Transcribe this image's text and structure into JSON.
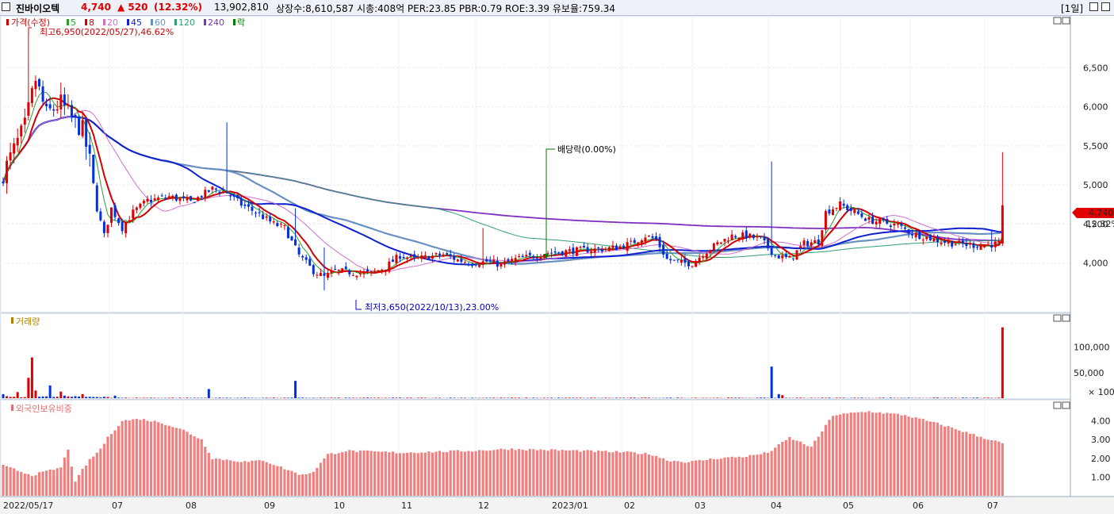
{
  "header": {
    "checkbox_icon": "checkbox-icon",
    "name": "진바이오텍",
    "price": "4,740",
    "change": "▲ 520",
    "change_pct": "(12.32%)",
    "volume": "13,902,810",
    "info": "상장수:8,610,587  시총:408억  PER:23.85  PBR:0.79  ROE:3.39  유보율:759.34",
    "period": "[1일]",
    "colors": {
      "up": "#e00000",
      "down": "#0000ff"
    }
  },
  "price_panel": {
    "legend_title": "가격(수정)",
    "ma_legend": [
      {
        "label": "5",
        "color": "#2aa02a"
      },
      {
        "label": "8",
        "color": "#d40000"
      },
      {
        "label": "20",
        "color": "#d070d0"
      },
      {
        "label": "45",
        "color": "#1020d0"
      },
      {
        "label": "60",
        "color": "#6890c0"
      },
      {
        "label": "120",
        "color": "#30a070"
      },
      {
        "label": "240",
        "color": "#8030c0"
      },
      {
        "label": "락",
        "color": "#007a00"
      }
    ],
    "max_label": "최고6,950(2022/05/27),46.62%",
    "min_label": "최저3,650(2022/10/13),23.00%",
    "dividend_label": "배당락(0.00%)",
    "last_price_tag": "4,740",
    "last_pct_tag": "12.32%"
  },
  "volume_panel": {
    "title": "거래량",
    "unit_label": "× 100"
  },
  "foreign_panel": {
    "title": "외국인보유비중"
  },
  "chart_data": {
    "type": "candlestick",
    "x_labels": [
      "2022/05/17",
      "07",
      "08",
      "09",
      "10",
      "11",
      "12",
      "2023/01",
      "02",
      "03",
      "04",
      "05",
      "06",
      "07"
    ],
    "price_axis": {
      "ticks": [
        "6,500",
        "6,000",
        "5,500",
        "5,000",
        "4,500",
        "4,000"
      ],
      "range": [
        3500,
        7000
      ]
    },
    "volume_axis": {
      "ticks": [
        "100,000",
        "50,000"
      ],
      "range": [
        0,
        150000
      ]
    },
    "foreign_axis": {
      "ticks": [
        "4.00",
        "3.00",
        "2.00",
        "1.00"
      ],
      "range": [
        0,
        4.7
      ]
    },
    "close_anchors": [
      [
        0,
        5150
      ],
      [
        6,
        5750
      ],
      [
        9,
        6350
      ],
      [
        12,
        5900
      ],
      [
        16,
        6050
      ],
      [
        19,
        5850
      ],
      [
        22,
        5700
      ],
      [
        24,
        5300
      ],
      [
        26,
        4700
      ],
      [
        28,
        4350
      ],
      [
        30,
        4700
      ],
      [
        33,
        4450
      ],
      [
        36,
        4650
      ],
      [
        40,
        4800
      ],
      [
        46,
        4850
      ],
      [
        52,
        4780
      ],
      [
        58,
        4950
      ],
      [
        62,
        4900
      ],
      [
        66,
        4750
      ],
      [
        70,
        4650
      ],
      [
        75,
        4500
      ],
      [
        78,
        4450
      ],
      [
        82,
        4100
      ],
      [
        86,
        3900
      ],
      [
        89,
        3820
      ],
      [
        92,
        3900
      ],
      [
        97,
        3880
      ],
      [
        102,
        3870
      ],
      [
        106,
        3950
      ],
      [
        110,
        4100
      ],
      [
        114,
        4050
      ],
      [
        118,
        4080
      ],
      [
        122,
        4110
      ],
      [
        126,
        4040
      ],
      [
        130,
        4000
      ],
      [
        134,
        4020
      ],
      [
        138,
        3980
      ],
      [
        142,
        4050
      ],
      [
        146,
        4080
      ],
      [
        150,
        4130
      ],
      [
        154,
        4140
      ],
      [
        158,
        4160
      ],
      [
        162,
        4170
      ],
      [
        166,
        4180
      ],
      [
        170,
        4200
      ],
      [
        174,
        4250
      ],
      [
        178,
        4350
      ],
      [
        181,
        4300
      ],
      [
        184,
        4050
      ],
      [
        188,
        4000
      ],
      [
        191,
        4000
      ],
      [
        194,
        4120
      ],
      [
        198,
        4250
      ],
      [
        202,
        4350
      ],
      [
        206,
        4350
      ],
      [
        210,
        4300
      ],
      [
        214,
        4100
      ],
      [
        218,
        4050
      ],
      [
        222,
        4250
      ],
      [
        226,
        4280
      ],
      [
        228,
        4650
      ],
      [
        232,
        4750
      ],
      [
        236,
        4650
      ],
      [
        240,
        4550
      ],
      [
        244,
        4520
      ],
      [
        248,
        4480
      ],
      [
        252,
        4380
      ],
      [
        256,
        4330
      ],
      [
        260,
        4280
      ],
      [
        264,
        4250
      ],
      [
        268,
        4230
      ],
      [
        272,
        4230
      ],
      [
        276,
        4250
      ],
      [
        277,
        4740
      ]
    ],
    "volume_spikes": [
      [
        0,
        8000
      ],
      [
        4,
        12000
      ],
      [
        7,
        40000
      ],
      [
        8,
        80000
      ],
      [
        9,
        15000
      ],
      [
        13,
        25000
      ],
      [
        16,
        13000
      ],
      [
        17,
        5000
      ],
      [
        22,
        8000
      ],
      [
        31,
        5000
      ],
      [
        57,
        18000
      ],
      [
        81,
        34000
      ],
      [
        213,
        62000
      ],
      [
        215,
        8000
      ],
      [
        216,
        6000
      ],
      [
        277,
        139000
      ]
    ],
    "foreign_anchors": [
      [
        0,
        1.6
      ],
      [
        8,
        1.1
      ],
      [
        12,
        1.3
      ],
      [
        16,
        1.5
      ],
      [
        18,
        2.5
      ],
      [
        20,
        0.7
      ],
      [
        22,
        1.4
      ],
      [
        24,
        1.9
      ],
      [
        27,
        2.5
      ],
      [
        29,
        3.1
      ],
      [
        33,
        4.0
      ],
      [
        38,
        4.1
      ],
      [
        44,
        3.9
      ],
      [
        50,
        3.5
      ],
      [
        55,
        3.0
      ],
      [
        58,
        2.0
      ],
      [
        63,
        1.9
      ],
      [
        68,
        1.8
      ],
      [
        72,
        1.9
      ],
      [
        76,
        1.6
      ],
      [
        80,
        1.3
      ],
      [
        83,
        1.1
      ],
      [
        86,
        1.3
      ],
      [
        90,
        2.2
      ],
      [
        95,
        2.4
      ],
      [
        110,
        2.3
      ],
      [
        130,
        2.4
      ],
      [
        140,
        2.5
      ],
      [
        160,
        2.4
      ],
      [
        175,
        2.3
      ],
      [
        180,
        2.2
      ],
      [
        184,
        1.9
      ],
      [
        190,
        1.8
      ],
      [
        198,
        2.0
      ],
      [
        206,
        2.1
      ],
      [
        212,
        2.3
      ],
      [
        218,
        3.1
      ],
      [
        224,
        2.6
      ],
      [
        230,
        4.3
      ],
      [
        240,
        4.5
      ],
      [
        250,
        4.3
      ],
      [
        260,
        3.8
      ],
      [
        270,
        3.2
      ],
      [
        277,
        2.8
      ]
    ]
  }
}
